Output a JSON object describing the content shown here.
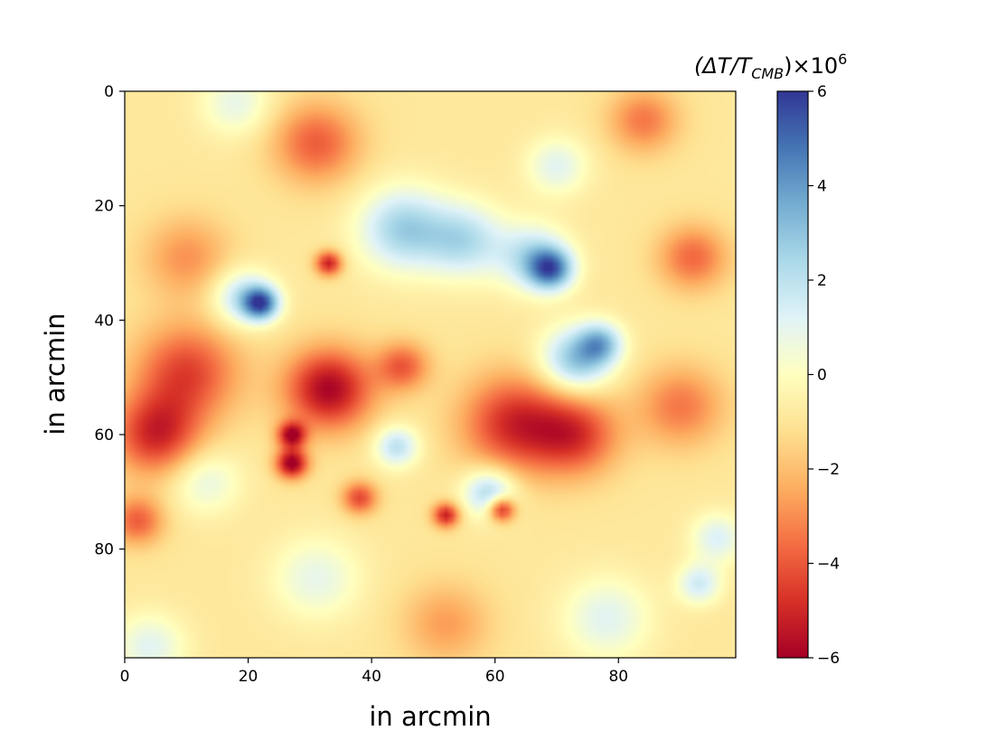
{
  "chart_data": {
    "type": "heatmap",
    "title": "",
    "xlabel": "in arcmin",
    "ylabel": "in arcmin",
    "x_ticks": [
      "0",
      "20",
      "40",
      "60",
      "80"
    ],
    "y_ticks": [
      "0",
      "20",
      "40",
      "60",
      "80"
    ],
    "x_tick_values": [
      0,
      20,
      40,
      60,
      80
    ],
    "y_tick_values": [
      0,
      20,
      40,
      60,
      80
    ],
    "xlim": [
      0,
      99
    ],
    "ylim": [
      99,
      0
    ],
    "grid": false,
    "colormap": "RdYlBu",
    "colorbar": {
      "label_prefix": "(ΔT/T",
      "label_subscript": "CMB",
      "label_middle": ")×10",
      "label_superscript": "6",
      "ticks": [
        "−6",
        "−4",
        "−2",
        "0",
        "2",
        "4",
        "6"
      ],
      "tick_values": [
        -6,
        -4,
        -2,
        0,
        2,
        4,
        6
      ],
      "range": [
        -6,
        6
      ],
      "colors": [
        "#a50026",
        "#d73027",
        "#f46d43",
        "#fdae61",
        "#fee090",
        "#ffffbf",
        "#e0f3f8",
        "#abd9e9",
        "#74add1",
        "#4575b4",
        "#313695"
      ]
    },
    "features": [
      {
        "x": 22,
        "y": 37,
        "value": 5.5,
        "sigma": 2.0
      },
      {
        "x": 19,
        "y": 36,
        "value": 3.0,
        "sigma": 3.5
      },
      {
        "x": 45,
        "y": 24,
        "value": 3.5,
        "sigma": 5.0
      },
      {
        "x": 55,
        "y": 26,
        "value": 3.0,
        "sigma": 4.5
      },
      {
        "x": 69,
        "y": 31,
        "value": 5.0,
        "sigma": 2.5
      },
      {
        "x": 66,
        "y": 29,
        "value": 3.0,
        "sigma": 4.0
      },
      {
        "x": 73,
        "y": 47,
        "value": 4.0,
        "sigma": 4.0
      },
      {
        "x": 77,
        "y": 44,
        "value": 3.5,
        "sigma": 2.5
      },
      {
        "x": 44,
        "y": 62,
        "value": 3.0,
        "sigma": 2.5
      },
      {
        "x": 59,
        "y": 70,
        "value": 3.5,
        "sigma": 3.0
      },
      {
        "x": 70,
        "y": 13,
        "value": 2.0,
        "sigma": 3.5
      },
      {
        "x": 18,
        "y": 2,
        "value": 1.8,
        "sigma": 4.0
      },
      {
        "x": 13,
        "y": 68,
        "value": 1.8,
        "sigma": 4.0
      },
      {
        "x": 96,
        "y": 78,
        "value": 2.2,
        "sigma": 3.0
      },
      {
        "x": 93,
        "y": 86,
        "value": 2.5,
        "sigma": 2.5
      },
      {
        "x": 78,
        "y": 92,
        "value": 2.0,
        "sigma": 5.0
      },
      {
        "x": 31,
        "y": 85,
        "value": 1.8,
        "sigma": 5.0
      },
      {
        "x": 4,
        "y": 97,
        "value": 2.0,
        "sigma": 4.0
      },
      {
        "x": 33,
        "y": 52,
        "value": -5.0,
        "sigma": 5.0
      },
      {
        "x": 27,
        "y": 60,
        "value": -5.0,
        "sigma": 1.6
      },
      {
        "x": 27,
        "y": 65,
        "value": -5.5,
        "sigma": 1.8
      },
      {
        "x": 33,
        "y": 30,
        "value": -4.5,
        "sigma": 1.5
      },
      {
        "x": 5,
        "y": 60,
        "value": -4.0,
        "sigma": 5.0
      },
      {
        "x": 10,
        "y": 49,
        "value": -3.5,
        "sigma": 6.0
      },
      {
        "x": 63,
        "y": 58,
        "value": -4.0,
        "sigma": 6.0
      },
      {
        "x": 73,
        "y": 60,
        "value": -3.5,
        "sigma": 5.0
      },
      {
        "x": 61,
        "y": 73,
        "value": -5.0,
        "sigma": 1.5
      },
      {
        "x": 52,
        "y": 74,
        "value": -4.5,
        "sigma": 1.5
      },
      {
        "x": 38,
        "y": 71,
        "value": -3.5,
        "sigma": 2.0
      },
      {
        "x": 31,
        "y": 9,
        "value": -3.0,
        "sigma": 5.0
      },
      {
        "x": 2,
        "y": 75,
        "value": -3.0,
        "sigma": 3.0
      },
      {
        "x": 92,
        "y": 29,
        "value": -2.8,
        "sigma": 4.0
      },
      {
        "x": 84,
        "y": 5,
        "value": -2.5,
        "sigma": 4.0
      },
      {
        "x": 90,
        "y": 55,
        "value": -2.5,
        "sigma": 5.0
      },
      {
        "x": 10,
        "y": 29,
        "value": -2.0,
        "sigma": 5.0
      },
      {
        "x": 45,
        "y": 48,
        "value": -3.0,
        "sigma": 3.0
      },
      {
        "x": 52,
        "y": 93,
        "value": -1.8,
        "sigma": 5.0
      }
    ]
  }
}
